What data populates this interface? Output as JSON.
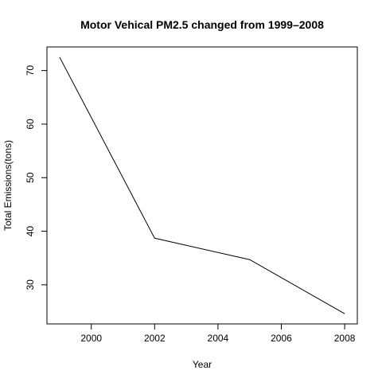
{
  "chart_data": {
    "type": "line",
    "title": "Motor Vehical PM2.5 changed from 1999–2008",
    "xlabel": "Year",
    "ylabel": "Total Emissions(tons)",
    "x": [
      1999,
      2002,
      2005,
      2008
    ],
    "series": [
      {
        "values": [
          72.5,
          38.7,
          34.7,
          24.6
        ]
      }
    ],
    "xticks": [
      2000,
      2002,
      2004,
      2006,
      2008
    ],
    "yticks": [
      30,
      40,
      50,
      60,
      70
    ],
    "xlim": [
      1998.6,
      2008.4
    ],
    "ylim": [
      22.7,
      74.4
    ],
    "grid": false,
    "line_color": "#000000"
  }
}
